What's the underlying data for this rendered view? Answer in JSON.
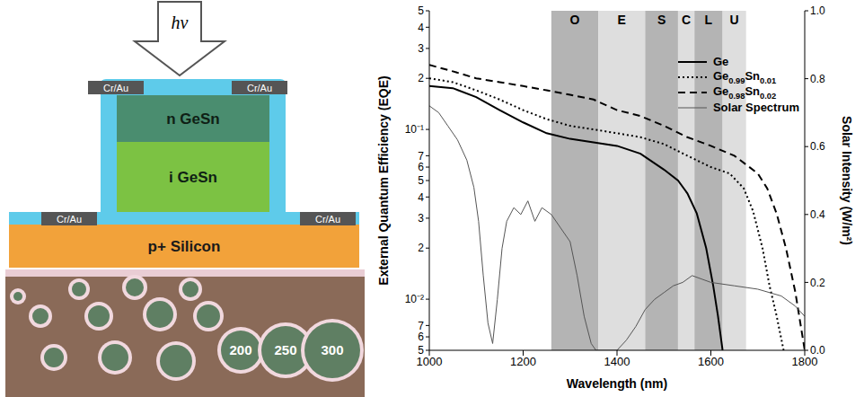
{
  "diagram": {
    "arrow_label": "hν",
    "contacts": [
      "Cr/Au",
      "Cr/Au",
      "Cr/Au",
      "Cr/Au"
    ],
    "layers": [
      "n GeSn",
      "i GeSn",
      "p+ Silicon"
    ],
    "photo_labels": [
      "200",
      "250",
      "300"
    ]
  },
  "chart_data": {
    "type": "line",
    "x_label": "Wavelength (nm)",
    "y_label": "External Quantum Efficiency (EQE)",
    "y2_label": "Solar Intensity (W/m²)",
    "xlim": [
      1000,
      1800
    ],
    "xticks": [
      1000,
      1200,
      1400,
      1600,
      1800
    ],
    "log": "y",
    "grid": false,
    "legend": "upper right",
    "ylim": [
      0.005,
      0.5
    ],
    "yticks": [
      {
        "value": 0.5,
        "label": "5"
      },
      {
        "value": 0.4,
        "label": "4"
      },
      {
        "value": 0.3,
        "label": "3"
      },
      {
        "value": 0.2,
        "label": "2"
      },
      {
        "value": 0.1,
        "label": "10⁻¹"
      },
      {
        "value": 0.07,
        "label": "7"
      },
      {
        "value": 0.06,
        "label": "6"
      },
      {
        "value": 0.05,
        "label": "5"
      },
      {
        "value": 0.04,
        "label": "4"
      },
      {
        "value": 0.03,
        "label": "3"
      },
      {
        "value": 0.02,
        "label": "2"
      },
      {
        "value": 0.01,
        "label": "10⁻²"
      },
      {
        "value": 0.007,
        "label": "7"
      },
      {
        "value": 0.006,
        "label": "6"
      },
      {
        "value": 0.005,
        "label": "5"
      }
    ],
    "y2lim": [
      0,
      1
    ],
    "y2ticks": [
      {
        "value": 0,
        "label": "0.0"
      },
      0.2,
      0.4,
      0.6,
      0.8,
      {
        "value": 1,
        "label": "1.0"
      }
    ],
    "bands": [
      {
        "label": "O",
        "x": [
          1260,
          1360
        ],
        "color": "#b4b4b4"
      },
      {
        "label": "E",
        "x": [
          1360,
          1460
        ],
        "color": "#dedede"
      },
      {
        "label": "S",
        "x": [
          1460,
          1530
        ],
        "color": "#b4b4b4"
      },
      {
        "label": "C",
        "x": [
          1530,
          1565
        ],
        "color": "#dedede"
      },
      {
        "label": "L",
        "x": [
          1565,
          1625
        ],
        "color": "#b4b4b4"
      },
      {
        "label": "U",
        "x": [
          1625,
          1675
        ],
        "color": "#dedede"
      }
    ],
    "series": [
      {
        "name": "Ge",
        "color": "#000000",
        "line_style": "solid",
        "x": [
          1000,
          1050,
          1100,
          1150,
          1200,
          1250,
          1300,
          1350,
          1400,
          1450,
          1500,
          1530,
          1550,
          1570,
          1590,
          1605,
          1615,
          1625
        ],
        "values": [
          0.18,
          0.175,
          0.155,
          0.13,
          0.11,
          0.095,
          0.088,
          0.084,
          0.08,
          0.072,
          0.058,
          0.05,
          0.042,
          0.032,
          0.02,
          0.012,
          0.008,
          0.005
        ]
      },
      {
        "name": "Ge0.99Sn0.01",
        "color": "#000000",
        "line_style": "dotted",
        "x": [
          1000,
          1050,
          1100,
          1150,
          1200,
          1250,
          1300,
          1350,
          1400,
          1450,
          1500,
          1550,
          1600,
          1640,
          1670,
          1690,
          1710,
          1725,
          1740,
          1755
        ],
        "values": [
          0.2,
          0.19,
          0.17,
          0.15,
          0.13,
          0.115,
          0.105,
          0.1,
          0.095,
          0.09,
          0.082,
          0.07,
          0.06,
          0.055,
          0.045,
          0.033,
          0.02,
          0.012,
          0.008,
          0.005
        ]
      },
      {
        "name": "Ge0.98Sn0.02",
        "color": "#000000",
        "line_style": "dashed",
        "x": [
          1000,
          1050,
          1100,
          1150,
          1200,
          1250,
          1300,
          1350,
          1400,
          1450,
          1500,
          1550,
          1600,
          1650,
          1700,
          1720,
          1740,
          1760,
          1780,
          1800
        ],
        "values": [
          0.24,
          0.22,
          0.2,
          0.19,
          0.18,
          0.17,
          0.16,
          0.15,
          0.13,
          0.12,
          0.105,
          0.09,
          0.08,
          0.07,
          0.055,
          0.045,
          0.032,
          0.02,
          0.011,
          0.005
        ]
      },
      {
        "name": "Solar Spectrum",
        "color": "#555555",
        "line_style": "solid",
        "axis": "y2",
        "x": [
          1000,
          1020,
          1040,
          1060,
          1080,
          1095,
          1105,
          1115,
          1125,
          1135,
          1145,
          1155,
          1165,
          1180,
          1195,
          1210,
          1225,
          1240,
          1260,
          1280,
          1300,
          1315,
          1330,
          1345,
          1355,
          1400,
          1420,
          1440,
          1460,
          1480,
          1500,
          1520,
          1540,
          1560,
          1580,
          1600,
          1650,
          1700,
          1750,
          1780,
          1800
        ],
        "values": [
          0.72,
          0.7,
          0.66,
          0.62,
          0.56,
          0.48,
          0.38,
          0.22,
          0.08,
          0.02,
          0.15,
          0.3,
          0.38,
          0.42,
          0.4,
          0.44,
          0.38,
          0.42,
          0.4,
          0.36,
          0.32,
          0.22,
          0.1,
          0.02,
          0,
          0,
          0.03,
          0.07,
          0.12,
          0.15,
          0.17,
          0.19,
          0.2,
          0.22,
          0.21,
          0.2,
          0.19,
          0.18,
          0.16,
          0.13,
          0.1
        ]
      }
    ]
  }
}
